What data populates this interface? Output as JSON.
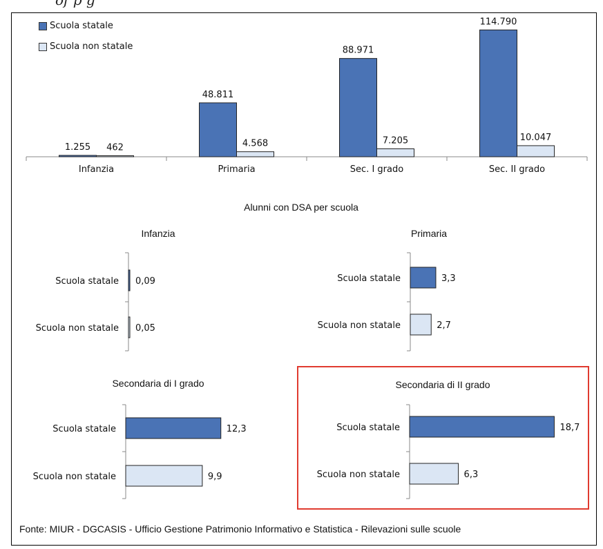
{
  "page": {
    "top_title_fragment": "of         p         g",
    "source_note": "Fonte: MIUR - DGCASIS - Ufficio Gestione Patrimonio Informativo e Statistica - Rilevazioni sulle scuole"
  },
  "colors": {
    "statale": "#4a73b5",
    "non_statale": "#dbe6f4",
    "outline": "#222222",
    "highlight": "#e03a2f"
  },
  "legend": {
    "statale_label": "Scuola statale",
    "non_statale_label": "Scuola non statale"
  },
  "chart_data": [
    {
      "type": "bar",
      "title": "",
      "categories": [
        "Infanzia",
        "Primaria",
        "Sec. I grado",
        "Sec. II grado"
      ],
      "series": [
        {
          "name": "Scuola statale",
          "values": [
            1255,
            48811,
            88971,
            114790
          ],
          "labels": [
            "1.255",
            "48.811",
            "88.971",
            "114.790"
          ]
        },
        {
          "name": "Scuola non statale",
          "values": [
            462,
            4568,
            7205,
            10047
          ],
          "labels": [
            "462",
            "4.568",
            "7.205",
            "10.047"
          ]
        }
      ],
      "ylim": [
        0,
        125000
      ],
      "legend_position": "top-left"
    },
    {
      "type": "bar",
      "orientation": "horizontal",
      "title": "Alunni con DSA per scuola",
      "panels": [
        {
          "title": "Infanzia",
          "categories": [
            "Scuola statale",
            "Scuola non statale"
          ],
          "values": [
            0.09,
            0.05
          ],
          "labels": [
            "0,09",
            "0,05"
          ]
        },
        {
          "title": "Primaria",
          "categories": [
            "Scuola statale",
            "Scuola non statale"
          ],
          "values": [
            3.3,
            2.7
          ],
          "labels": [
            "3,3",
            "2,7"
          ]
        },
        {
          "title": "Secondaria di I grado",
          "categories": [
            "Scuola statale",
            "Scuola non statale"
          ],
          "values": [
            12.3,
            9.9
          ],
          "labels": [
            "12,3",
            "9,9"
          ]
        },
        {
          "title": "Secondaria di II grado",
          "categories": [
            "Scuola statale",
            "Scuola non statale"
          ],
          "values": [
            18.7,
            6.3
          ],
          "labels": [
            "18,7",
            "6,3"
          ],
          "highlighted": true
        }
      ],
      "xlim": [
        0,
        21
      ]
    }
  ]
}
